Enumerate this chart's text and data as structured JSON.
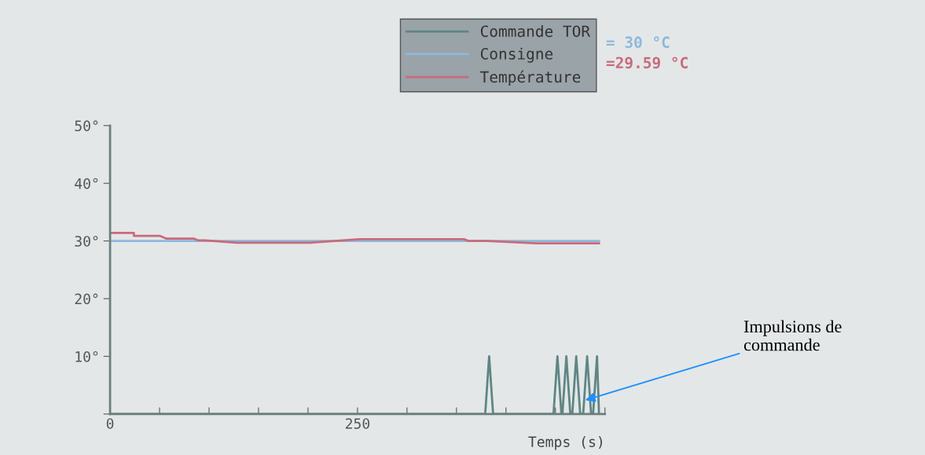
{
  "chart_data": {
    "type": "line",
    "xlabel": "Temps (s)",
    "series": [
      {
        "name": "Commande TOR",
        "color": "#5f8585",
        "x": [
          0,
          379,
          383,
          387,
          448,
          452,
          456,
          457,
          461,
          465,
          467,
          471,
          475,
          478,
          482,
          486,
          488,
          492,
          494
        ],
        "values": [
          0,
          0,
          10,
          0,
          0,
          10,
          0,
          0,
          10,
          0,
          0,
          10,
          0,
          0,
          10,
          0,
          0,
          10,
          0
        ]
      },
      {
        "name": "Consigne",
        "color": "#8cb9dc",
        "x": [
          0,
          494
        ],
        "values": [
          30,
          30
        ]
      },
      {
        "name": "Température",
        "color": "#c96a7c",
        "x": [
          0,
          24,
          24,
          50,
          57,
          85,
          89,
          96,
          128,
          202,
          252,
          358,
          362,
          381,
          431,
          494
        ],
        "values": [
          31.4,
          31.4,
          30.9,
          30.9,
          30.4,
          30.4,
          30.1,
          30.1,
          29.7,
          29.7,
          30.3,
          30.3,
          30.0,
          30.0,
          29.6,
          29.6
        ]
      }
    ],
    "xlim": [
      0,
      500
    ],
    "xticks": [
      0,
      {
        "value": 50,
        "label": null
      },
      {
        "value": 100,
        "label": null
      },
      {
        "value": 150,
        "label": null
      },
      {
        "value": 200,
        "label": null
      },
      250,
      {
        "value": 300,
        "label": null
      },
      {
        "value": 350,
        "label": null
      },
      {
        "value": 400,
        "label": null
      },
      {
        "value": 450,
        "label": null
      },
      {
        "value": 500,
        "label": null
      }
    ],
    "ylim": [
      0,
      50
    ],
    "yticks": [
      {
        "value": 0,
        "label": null
      },
      {
        "value": 10,
        "label": "10°"
      },
      {
        "value": 20,
        "label": "20°"
      },
      {
        "value": 30,
        "label": "30°"
      },
      {
        "value": 40,
        "label": "40°"
      },
      {
        "value": 50,
        "label": "50°"
      }
    ],
    "legend": "top right",
    "grid": false,
    "marker": "none",
    "line_style": "solid",
    "annotations": [
      "= 30 °C",
      "=29.59 °C",
      {
        "text": "Impulsions de\ncommande",
        "x": 478,
        "y": 2.3
      }
    ]
  }
}
